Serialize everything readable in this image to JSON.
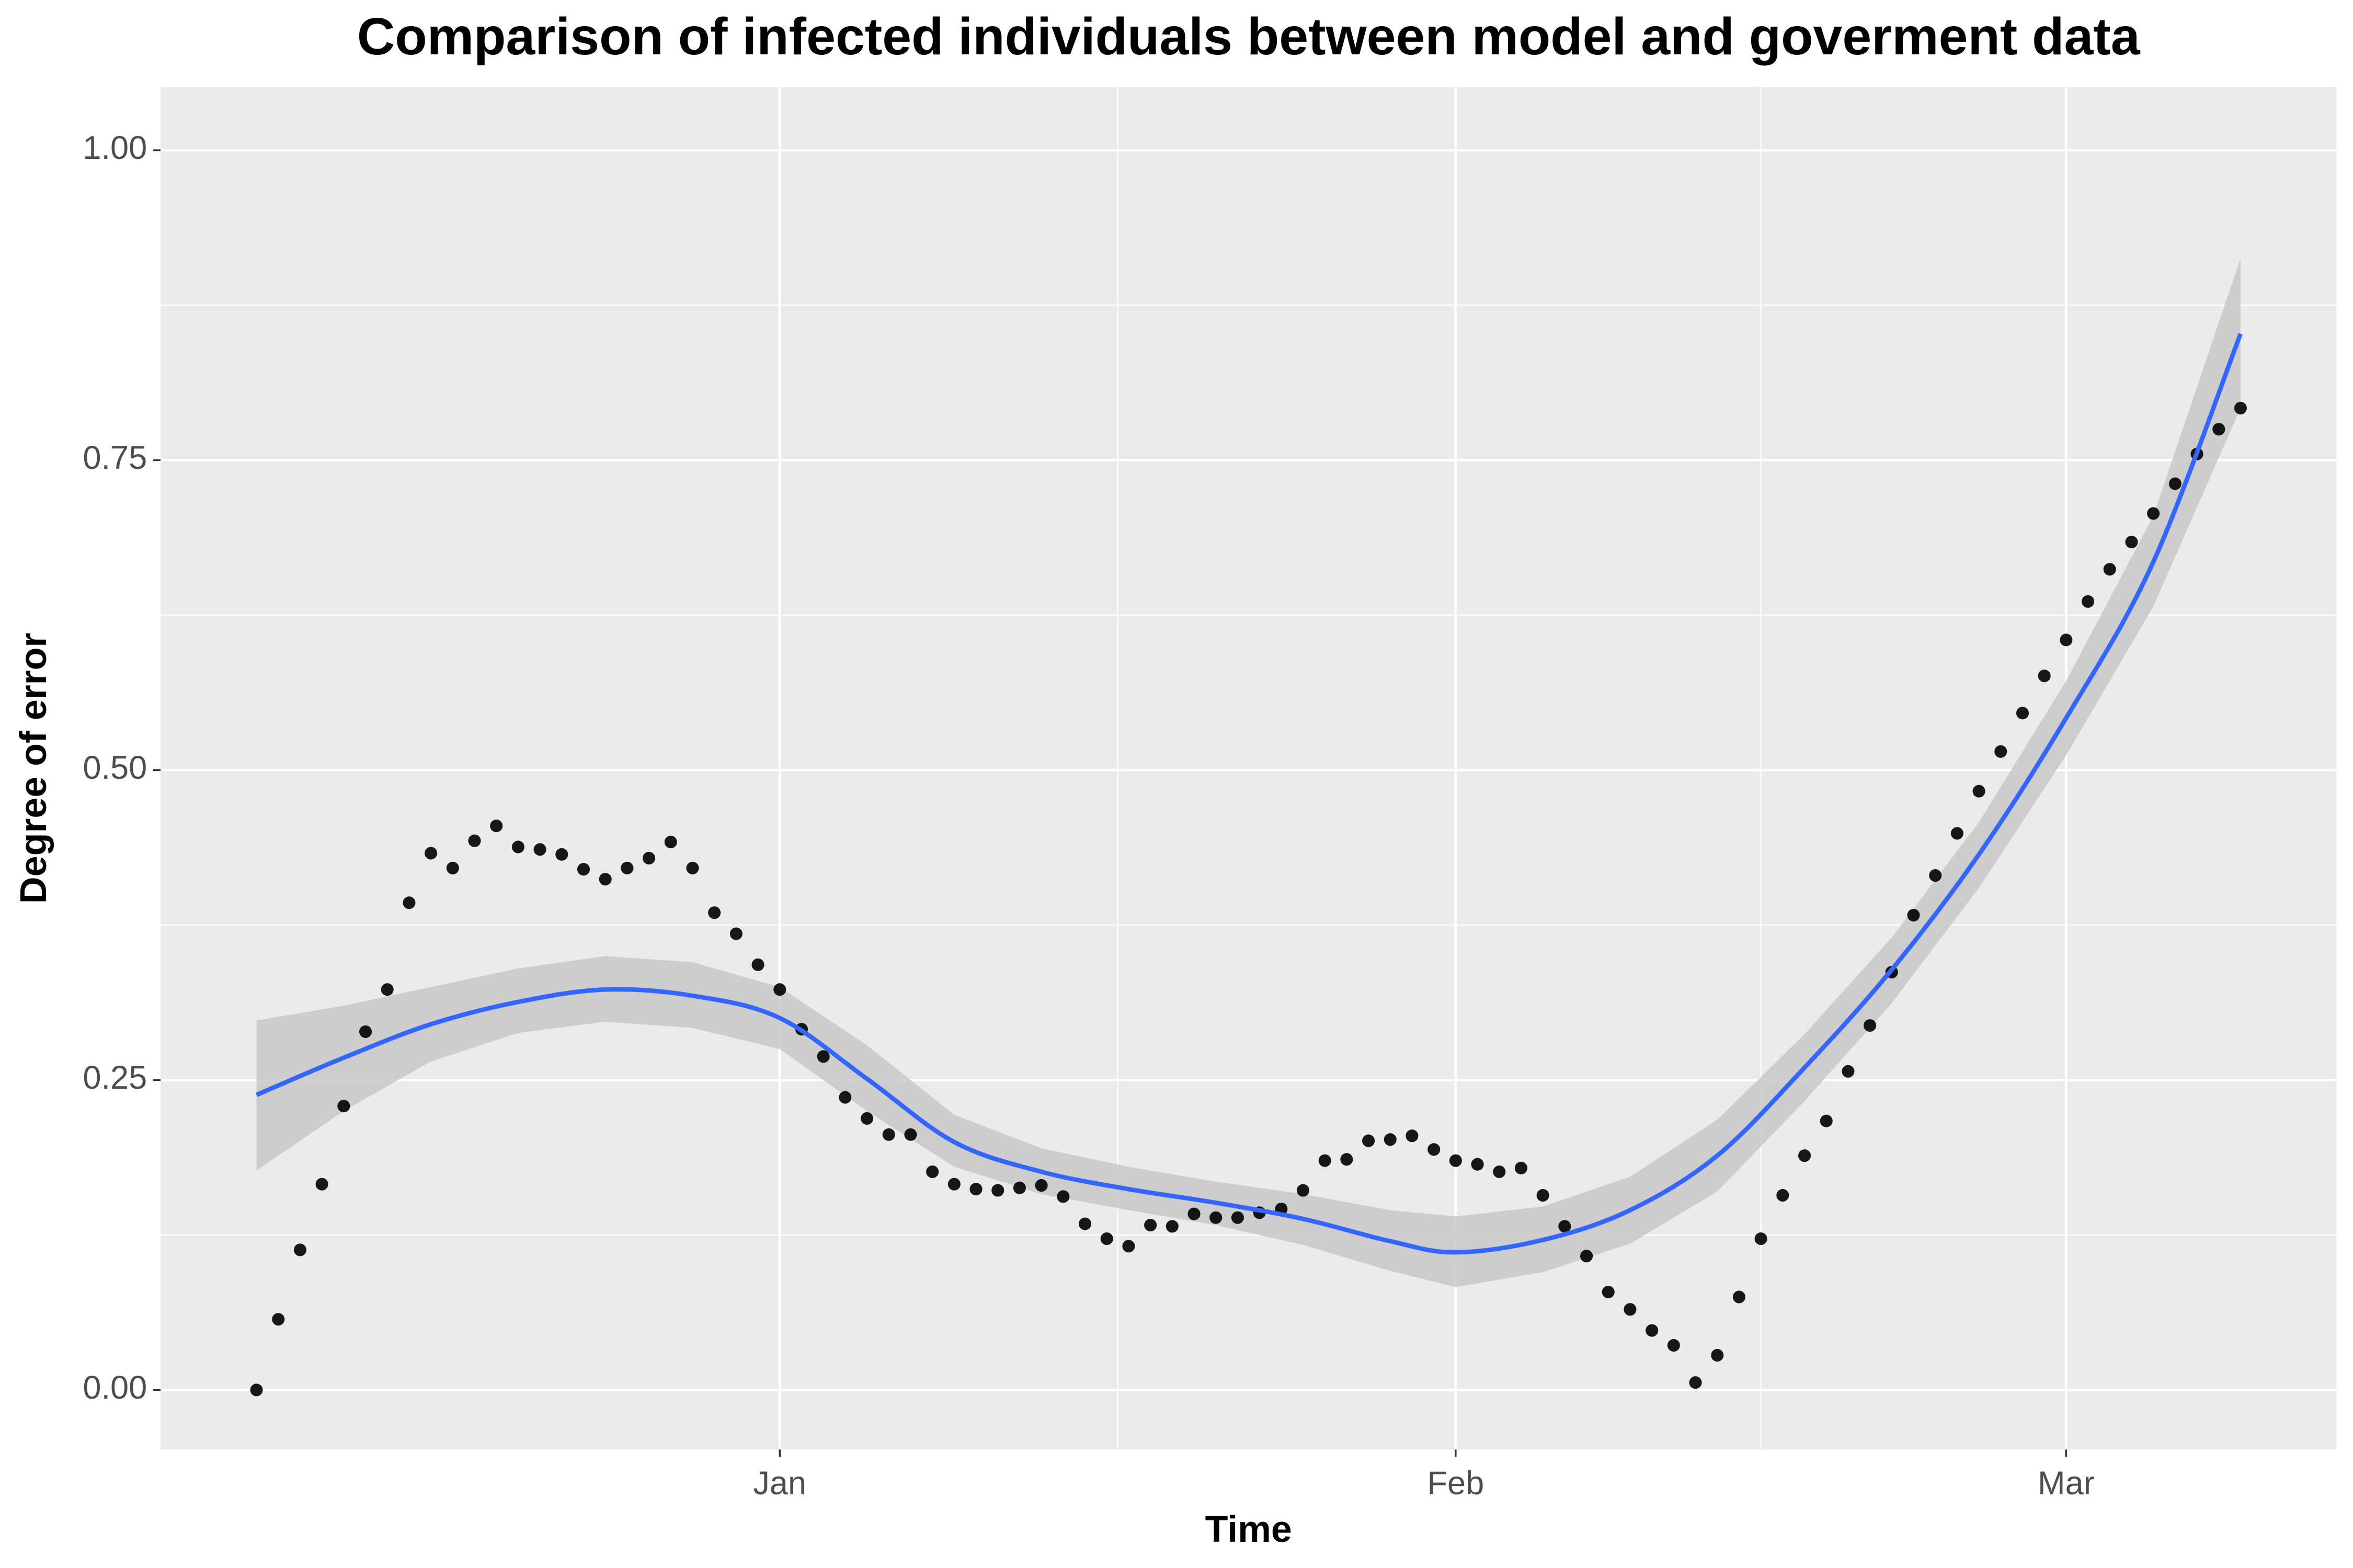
{
  "chart_data": {
    "type": "scatter",
    "title": "Comparison of infected individuals between model and goverment data",
    "x_label": "Time",
    "y_label": "Degree of error",
    "xlim": [
      -28.4,
      71.4
    ],
    "ylim": [
      -0.048,
      1.051
    ],
    "xticks": [
      {
        "value": 0,
        "label": "Jan"
      },
      {
        "value": 31,
        "label": "Feb"
      },
      {
        "value": 59,
        "label": "Mar"
      }
    ],
    "yticks": [
      {
        "value": 0,
        "label": "0.00"
      },
      {
        "value": 0.25,
        "label": "0.25"
      },
      {
        "value": 0.5,
        "label": "0.50"
      },
      {
        "value": 0.75,
        "label": "0.75"
      },
      {
        "value": 1,
        "label": "1.00"
      }
    ],
    "grid": true,
    "color": "#000000",
    "x": [
      -24,
      -23,
      -22,
      -21,
      -20,
      -19,
      -18,
      -17,
      -16,
      -15,
      -14,
      -13,
      -12,
      -11,
      -10,
      -9,
      -8,
      -7,
      -6,
      -5,
      -4,
      -3,
      -2,
      -1,
      0,
      1,
      2,
      3,
      4,
      5,
      6,
      7,
      8,
      9,
      10,
      11,
      12,
      13,
      14,
      15,
      16,
      17,
      18,
      19,
      20,
      21,
      22,
      23,
      24,
      25,
      26,
      27,
      28,
      29,
      30,
      31,
      32,
      33,
      34,
      35,
      36,
      37,
      38,
      39,
      40,
      41,
      42,
      43,
      44,
      45,
      46,
      47,
      48,
      49,
      50,
      51,
      52,
      53,
      54,
      55,
      56,
      57,
      58,
      59,
      60,
      61,
      62,
      63,
      64,
      65,
      66,
      67
    ],
    "values": [
      0,
      0.057,
      0.113,
      0.166,
      0.229,
      0.289,
      0.323,
      0.393,
      0.433,
      0.421,
      0.443,
      0.455,
      0.438,
      0.436,
      0.432,
      0.42,
      0.412,
      0.421,
      0.429,
      0.442,
      0.421,
      0.385,
      0.368,
      0.343,
      0.323,
      0.291,
      0.269,
      0.236,
      0.219,
      0.206,
      0.206,
      0.176,
      0.166,
      0.162,
      0.161,
      0.163,
      0.165,
      0.156,
      0.134,
      0.122,
      0.116,
      0.133,
      0.132,
      0.142,
      0.139,
      0.139,
      0.143,
      0.146,
      0.161,
      0.185,
      0.186,
      0.201,
      0.202,
      0.205,
      0.194,
      0.185,
      0.182,
      0.176,
      0.179,
      0.157,
      0.132,
      0.108,
      0.079,
      0.065,
      0.048,
      0.036,
      0.006,
      0.028,
      0.075,
      0.122,
      0.157,
      0.189,
      0.217,
      0.257,
      0.294,
      0.337,
      0.383,
      0.415,
      0.449,
      0.483,
      0.515,
      0.546,
      0.576,
      0.605,
      0.636,
      0.662,
      0.684,
      0.707,
      0.731,
      0.755,
      0.775,
      0.792
    ],
    "smooth": {
      "color": "#3366ff",
      "band_color": "#c8c8c8",
      "x": [
        -24,
        -20,
        -16,
        -12,
        -8,
        -4,
        0,
        4,
        8,
        12,
        16,
        20,
        24,
        28,
        31,
        35,
        39,
        43,
        47,
        51,
        55,
        59,
        63,
        67
      ],
      "values": [
        0.238,
        0.268,
        0.295,
        0.313,
        0.323,
        0.318,
        0.3,
        0.251,
        0.2,
        0.176,
        0.162,
        0.151,
        0.138,
        0.12,
        0.111,
        0.121,
        0.145,
        0.189,
        0.26,
        0.339,
        0.432,
        0.542,
        0.668,
        0.852
      ],
      "lower": [
        0.177,
        0.225,
        0.265,
        0.288,
        0.297,
        0.292,
        0.275,
        0.225,
        0.18,
        0.158,
        0.145,
        0.133,
        0.117,
        0.096,
        0.083,
        0.095,
        0.118,
        0.16,
        0.233,
        0.312,
        0.405,
        0.512,
        0.632,
        0.792
      ],
      "upper": [
        0.298,
        0.31,
        0.325,
        0.34,
        0.35,
        0.345,
        0.325,
        0.278,
        0.222,
        0.195,
        0.18,
        0.168,
        0.158,
        0.145,
        0.14,
        0.148,
        0.172,
        0.218,
        0.287,
        0.365,
        0.458,
        0.572,
        0.705,
        0.913
      ]
    }
  }
}
